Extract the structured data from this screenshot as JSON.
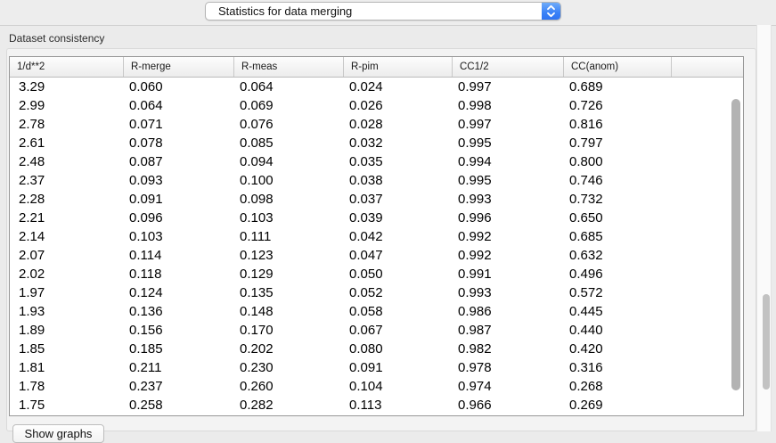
{
  "dropdown": {
    "selected_option": "Statistics for data merging"
  },
  "group": {
    "title": "Dataset consistency"
  },
  "table": {
    "columns": [
      "1/d**2",
      "R-merge",
      "R-meas",
      "R-pim",
      "CC1/2",
      "CC(anom)"
    ],
    "rows": [
      [
        "3.29",
        "0.060",
        "0.064",
        "0.024",
        "0.997",
        "0.689"
      ],
      [
        "2.99",
        "0.064",
        "0.069",
        "0.026",
        "0.998",
        "0.726"
      ],
      [
        "2.78",
        "0.071",
        "0.076",
        "0.028",
        "0.997",
        "0.816"
      ],
      [
        "2.61",
        "0.078",
        "0.085",
        "0.032",
        "0.995",
        "0.797"
      ],
      [
        "2.48",
        "0.087",
        "0.094",
        "0.035",
        "0.994",
        "0.800"
      ],
      [
        "2.37",
        "0.093",
        "0.100",
        "0.038",
        "0.995",
        "0.746"
      ],
      [
        "2.28",
        "0.091",
        "0.098",
        "0.037",
        "0.993",
        "0.732"
      ],
      [
        "2.21",
        "0.096",
        "0.103",
        "0.039",
        "0.996",
        "0.650"
      ],
      [
        "2.14",
        "0.103",
        "0.111",
        "0.042",
        "0.992",
        "0.685"
      ],
      [
        "2.07",
        "0.114",
        "0.123",
        "0.047",
        "0.992",
        "0.632"
      ],
      [
        "2.02",
        "0.118",
        "0.129",
        "0.050",
        "0.991",
        "0.496"
      ],
      [
        "1.97",
        "0.124",
        "0.135",
        "0.052",
        "0.993",
        "0.572"
      ],
      [
        "1.93",
        "0.136",
        "0.148",
        "0.058",
        "0.986",
        "0.445"
      ],
      [
        "1.89",
        "0.156",
        "0.170",
        "0.067",
        "0.987",
        "0.440"
      ],
      [
        "1.85",
        "0.185",
        "0.202",
        "0.080",
        "0.982",
        "0.420"
      ],
      [
        "1.81",
        "0.211",
        "0.230",
        "0.091",
        "0.978",
        "0.316"
      ],
      [
        "1.78",
        "0.237",
        "0.260",
        "0.104",
        "0.974",
        "0.268"
      ],
      [
        "1.75",
        "0.258",
        "0.282",
        "0.113",
        "0.966",
        "0.269"
      ]
    ]
  },
  "buttons": {
    "show_graphs": "Show graphs"
  },
  "colors": {
    "popup_accent_blue": "#3a82f7",
    "page_background": "#ebebeb",
    "table_border": "#979797",
    "scroll_thumb": "#b3b3b3"
  }
}
